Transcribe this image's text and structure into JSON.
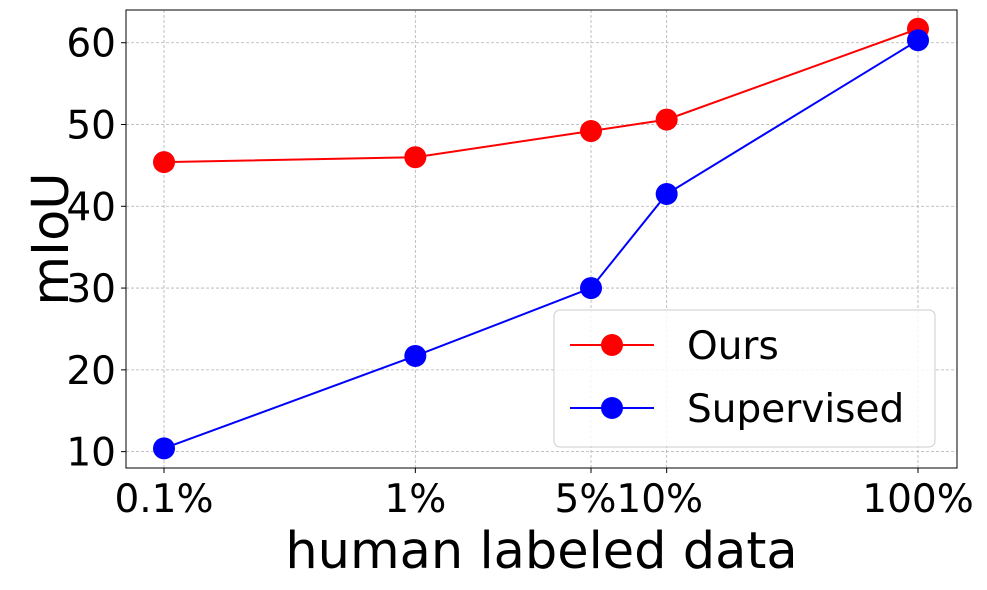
{
  "chart_data": {
    "type": "line",
    "title": "",
    "xlabel": "human labeled data",
    "ylabel": "mIoU",
    "x_scale": "log",
    "categories": [
      "0.1%",
      "1%",
      "5%",
      "10%",
      "100%"
    ],
    "x": [
      0.1,
      1,
      5,
      10,
      100
    ],
    "x_tick_labels": [
      "0.1%",
      "1%",
      "5%10%",
      "100%"
    ],
    "x_tick_values": [
      0.1,
      1,
      7.07,
      100
    ],
    "ylim": [
      8,
      64
    ],
    "y_ticks": [
      10,
      20,
      30,
      40,
      50,
      60
    ],
    "grid": true,
    "legend_position": "lower-right",
    "series": [
      {
        "name": "Ours",
        "color": "#ff0000",
        "marker": "circle",
        "values": [
          45.4,
          46.0,
          49.2,
          50.6,
          61.7
        ]
      },
      {
        "name": "Supervised",
        "color": "#0000ff",
        "marker": "circle",
        "values": [
          10.4,
          21.7,
          30.0,
          41.5,
          60.3
        ]
      }
    ]
  }
}
